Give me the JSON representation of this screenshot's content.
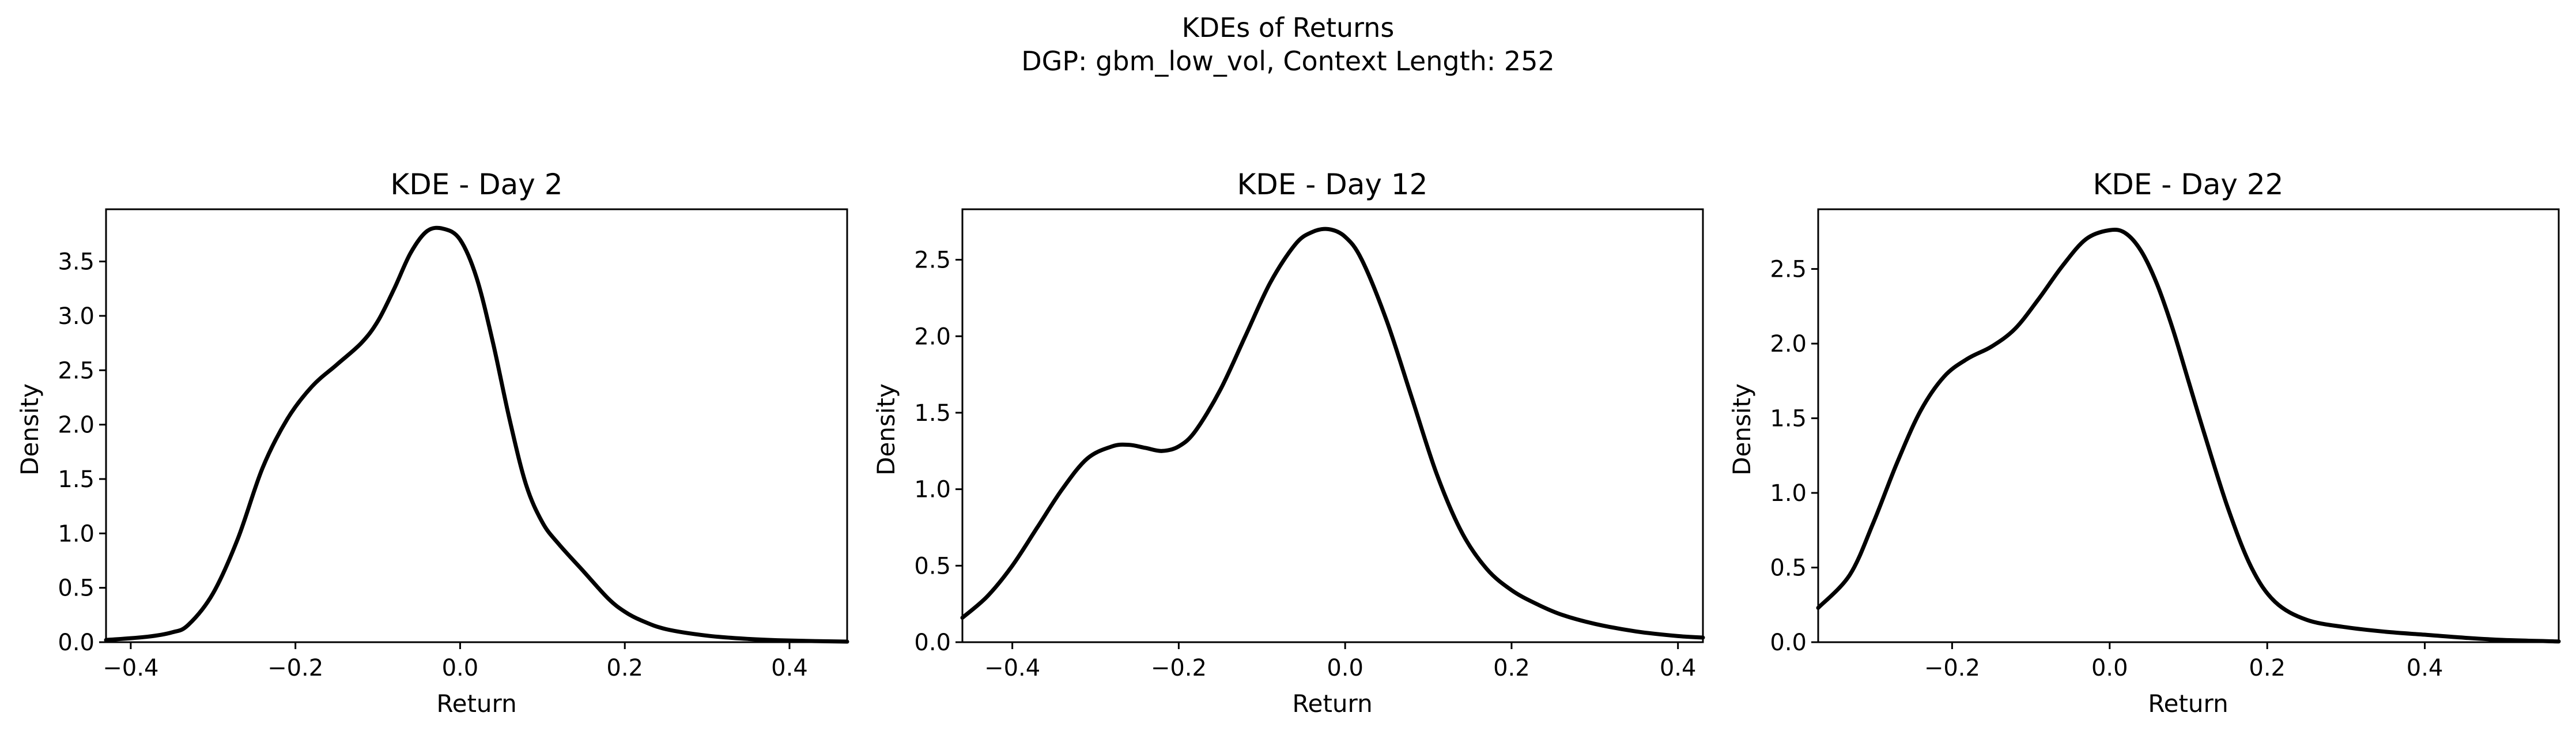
{
  "suptitle": {
    "line1": "KDEs of Returns",
    "line2": "DGP: gbm_low_vol, Context Length: 252"
  },
  "chart_data": [
    {
      "type": "line",
      "title": "KDE - Day 2",
      "xlabel": "Return",
      "ylabel": "Density",
      "xlim": [
        -0.43,
        0.47
      ],
      "ylim": [
        0,
        3.98
      ],
      "xticks": [
        -0.4,
        -0.2,
        0.0,
        0.2,
        0.4
      ],
      "xtick_labels": [
        "−0.4",
        "−0.2",
        "0.0",
        "0.2",
        "0.4"
      ],
      "yticks": [
        0.0,
        0.5,
        1.0,
        1.5,
        2.0,
        2.5,
        3.0,
        3.5
      ],
      "ytick_labels": [
        "0.0",
        "0.5",
        "1.0",
        "1.5",
        "2.0",
        "2.5",
        "3.0",
        "3.5"
      ],
      "grid": false,
      "color": "#000000",
      "x": [
        -0.43,
        -0.38,
        -0.35,
        -0.33,
        -0.3,
        -0.27,
        -0.24,
        -0.21,
        -0.18,
        -0.15,
        -0.12,
        -0.1,
        -0.08,
        -0.06,
        -0.04,
        -0.02,
        0.0,
        0.02,
        0.04,
        0.06,
        0.08,
        0.1,
        0.12,
        0.15,
        0.18,
        0.2,
        0.22,
        0.25,
        0.3,
        0.35,
        0.4,
        0.47
      ],
      "y": [
        0.02,
        0.05,
        0.09,
        0.16,
        0.45,
        0.95,
        1.6,
        2.05,
        2.35,
        2.55,
        2.75,
        2.95,
        3.25,
        3.58,
        3.78,
        3.8,
        3.7,
        3.35,
        2.75,
        2.05,
        1.45,
        1.1,
        0.9,
        0.65,
        0.4,
        0.28,
        0.2,
        0.12,
        0.06,
        0.03,
        0.015,
        0.005
      ]
    },
    {
      "type": "line",
      "title": "KDE - Day 12",
      "xlabel": "Return",
      "ylabel": "Density",
      "xlim": [
        -0.46,
        0.43
      ],
      "ylim": [
        0,
        2.83
      ],
      "xticks": [
        -0.4,
        -0.2,
        0.0,
        0.2,
        0.4
      ],
      "xtick_labels": [
        "−0.4",
        "−0.2",
        "0.0",
        "0.2",
        "0.4"
      ],
      "yticks": [
        0.0,
        0.5,
        1.0,
        1.5,
        2.0,
        2.5
      ],
      "ytick_labels": [
        "0.0",
        "0.5",
        "1.0",
        "1.5",
        "2.0",
        "2.5"
      ],
      "grid": false,
      "color": "#000000",
      "x": [
        -0.46,
        -0.43,
        -0.4,
        -0.37,
        -0.34,
        -0.31,
        -0.28,
        -0.26,
        -0.24,
        -0.22,
        -0.2,
        -0.18,
        -0.15,
        -0.12,
        -0.09,
        -0.06,
        -0.04,
        -0.02,
        0.0,
        0.02,
        0.05,
        0.08,
        0.11,
        0.14,
        0.17,
        0.2,
        0.23,
        0.26,
        0.3,
        0.35,
        0.4,
        0.43
      ],
      "y": [
        0.16,
        0.3,
        0.5,
        0.75,
        1.0,
        1.2,
        1.28,
        1.29,
        1.27,
        1.25,
        1.28,
        1.38,
        1.65,
        2.0,
        2.35,
        2.6,
        2.68,
        2.7,
        2.65,
        2.5,
        2.1,
        1.6,
        1.1,
        0.72,
        0.48,
        0.34,
        0.25,
        0.18,
        0.12,
        0.07,
        0.04,
        0.03
      ]
    },
    {
      "type": "line",
      "title": "KDE - Day 22",
      "xlabel": "Return",
      "ylabel": "Density",
      "xlim": [
        -0.37,
        0.57
      ],
      "ylim": [
        0,
        2.9
      ],
      "xticks": [
        -0.2,
        0.0,
        0.2,
        0.4
      ],
      "xtick_labels": [
        "−0.2",
        "0.0",
        "0.2",
        "0.4"
      ],
      "yticks": [
        0.0,
        0.5,
        1.0,
        1.5,
        2.0,
        2.5
      ],
      "ytick_labels": [
        "0.0",
        "0.5",
        "1.0",
        "1.5",
        "2.0",
        "2.5"
      ],
      "grid": false,
      "color": "#000000",
      "x": [
        -0.37,
        -0.33,
        -0.3,
        -0.27,
        -0.24,
        -0.21,
        -0.18,
        -0.15,
        -0.12,
        -0.09,
        -0.06,
        -0.03,
        0.0,
        0.02,
        0.04,
        0.06,
        0.08,
        0.1,
        0.12,
        0.15,
        0.18,
        0.21,
        0.25,
        0.3,
        0.35,
        0.4,
        0.45,
        0.5,
        0.57
      ],
      "y": [
        0.23,
        0.45,
        0.8,
        1.2,
        1.55,
        1.78,
        1.9,
        1.98,
        2.1,
        2.3,
        2.52,
        2.7,
        2.76,
        2.74,
        2.62,
        2.4,
        2.1,
        1.75,
        1.4,
        0.9,
        0.5,
        0.27,
        0.15,
        0.1,
        0.07,
        0.05,
        0.03,
        0.015,
        0.005
      ]
    }
  ]
}
